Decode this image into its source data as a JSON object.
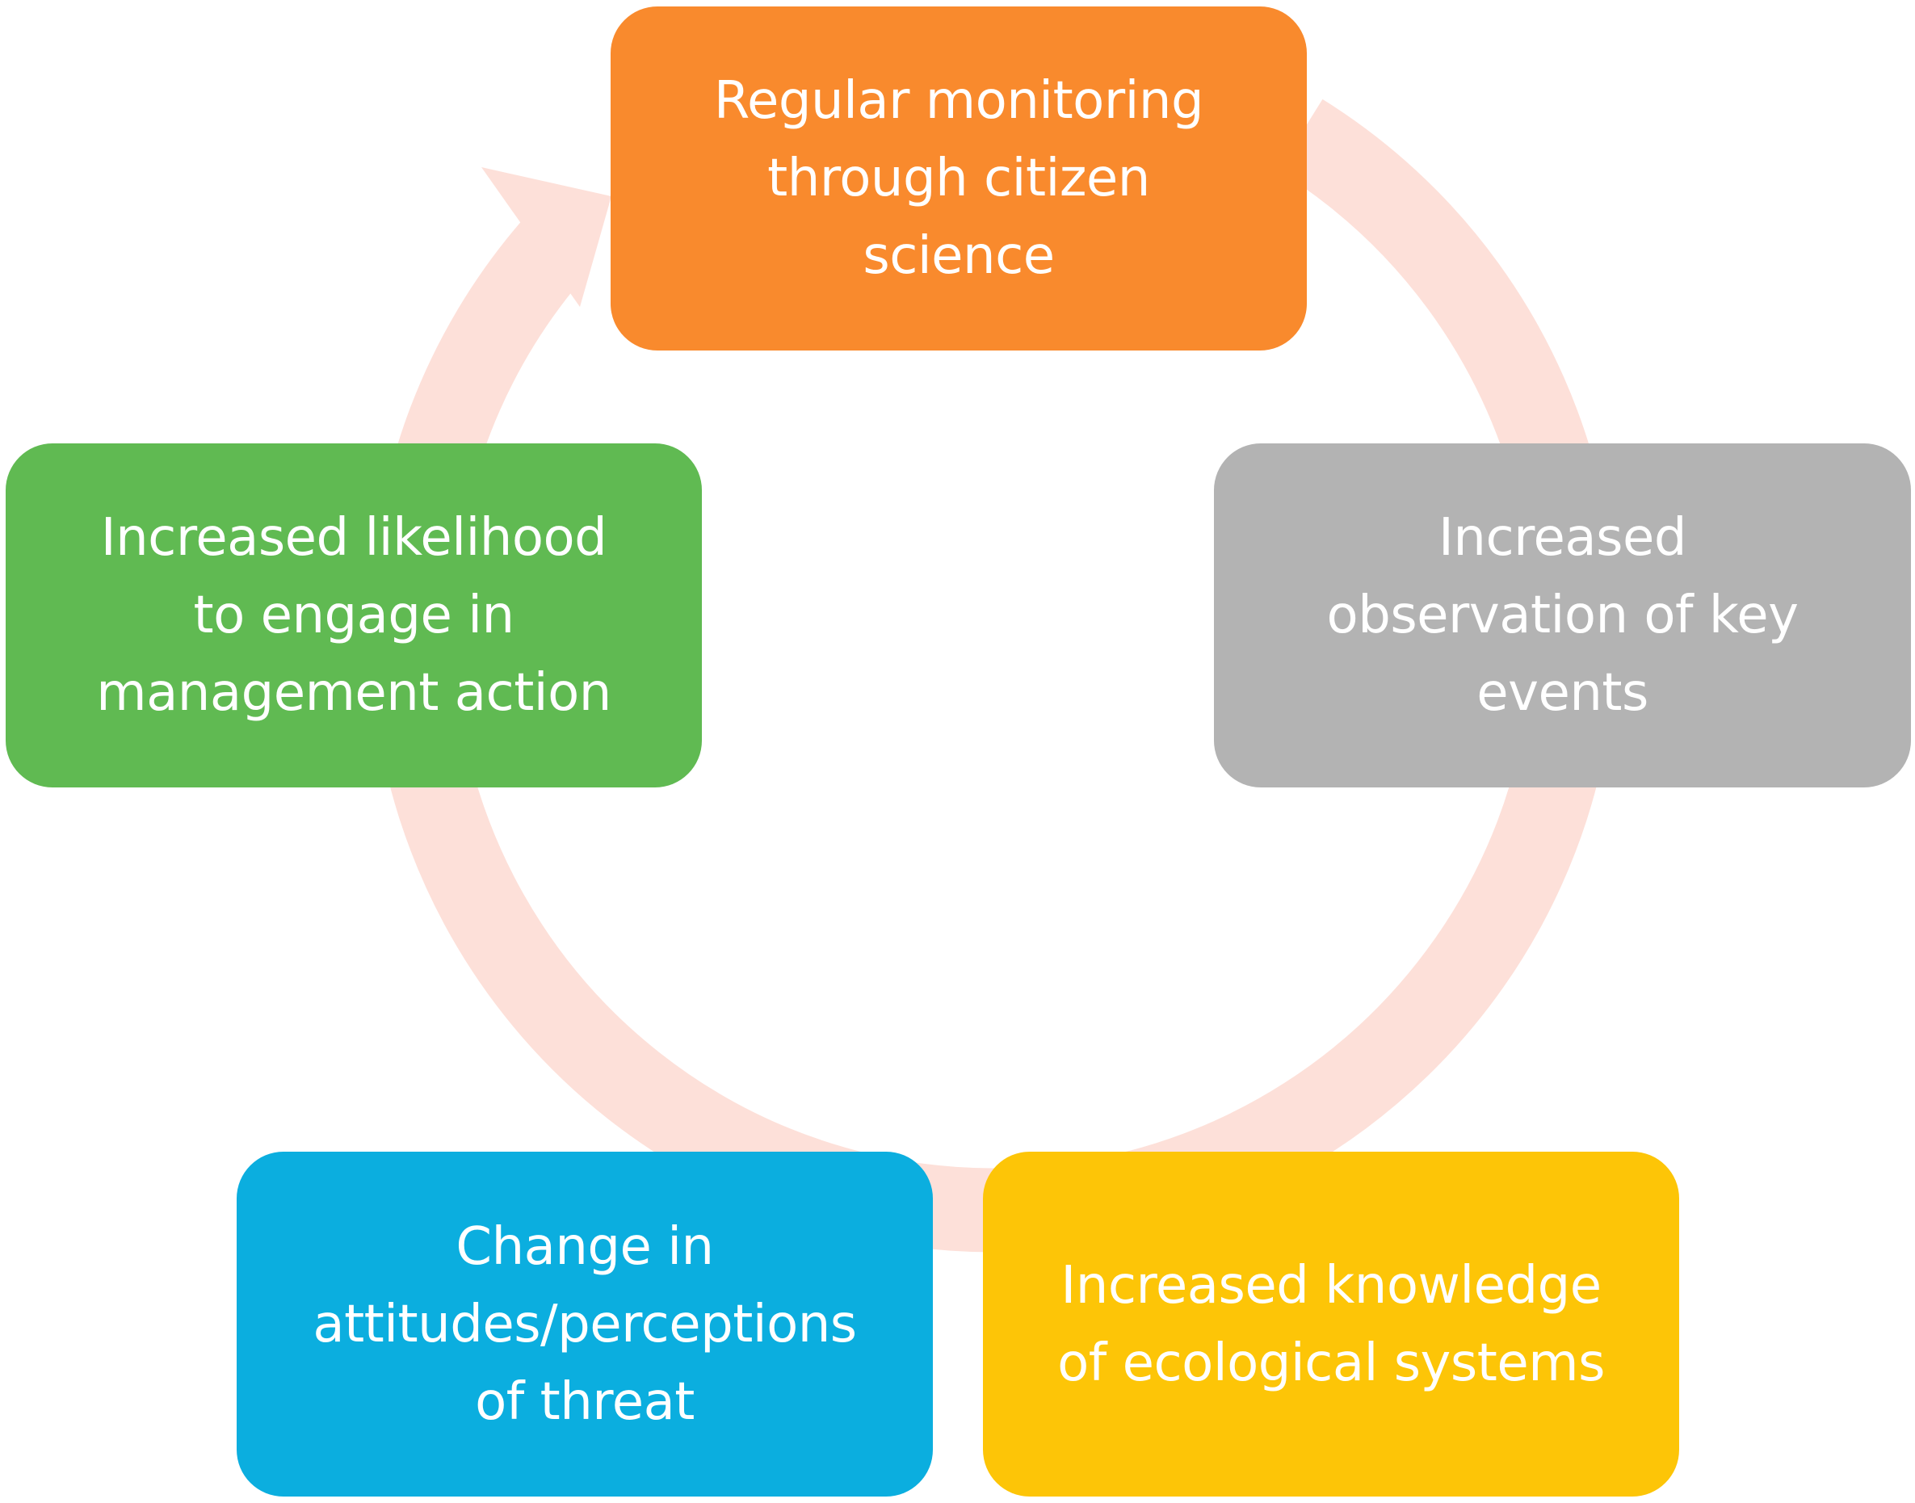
{
  "diagram": {
    "cycle_color": "#fde0d9",
    "nodes": [
      {
        "id": "top",
        "text": "Regular monitoring\nthrough citizen\nscience",
        "color": "#f98a2d"
      },
      {
        "id": "right",
        "text": "Increased\nobservation of key\nevents",
        "color": "#b3b3b3"
      },
      {
        "id": "bottom-right",
        "text": "Increased knowledge\nof ecological systems",
        "color": "#fdc507"
      },
      {
        "id": "bottom-left",
        "text": "Change in\nattitudes/perceptions\nof threat",
        "color": "#0baedf"
      },
      {
        "id": "left",
        "text": "Increased likelihood\nto engage in\nmanagement action",
        "color": "#60ba52"
      }
    ]
  }
}
